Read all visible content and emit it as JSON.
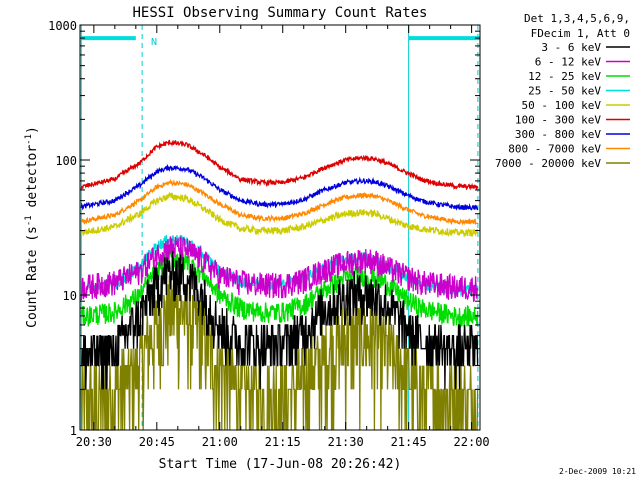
{
  "chart_data": {
    "type": "line",
    "title": "HESSI Observing Summary Count Rates",
    "xlabel": "Start Time (17-Jun-08 20:26:42)",
    "ylabel_parts": [
      "Count Rate (s",
      "-1",
      " detector",
      "-1",
      ")"
    ],
    "x_range_min": [
      26.7,
      122.0
    ],
    "y_scale": "log",
    "ylim": [
      1,
      1000
    ],
    "x_ticks": [
      {
        "min": 30,
        "label": "20:30"
      },
      {
        "min": 45,
        "label": "20:45"
      },
      {
        "min": 60,
        "label": "21:00"
      },
      {
        "min": 75,
        "label": "21:15"
      },
      {
        "min": 90,
        "label": "21:30"
      },
      {
        "min": 105,
        "label": "21:45"
      },
      {
        "min": 120,
        "label": "22:00"
      }
    ],
    "y_ticks": [
      {
        "value": 1,
        "label": "1"
      },
      {
        "value": 10,
        "label": "10"
      },
      {
        "value": 100,
        "label": "100"
      },
      {
        "value": 1000,
        "label": "1000"
      }
    ],
    "legend_header": [
      "Det 1,3,4,5,6,9,",
      "FDecim 1, Att 0"
    ],
    "legend_position": "right, outside plot",
    "annotation": "N",
    "footer_date": "2-Dec-2009 10:21",
    "cyan_bars": [
      [
        27,
        40
      ],
      [
        105,
        122
      ]
    ],
    "cyan_bar_value": 800,
    "solid_vlines_min": [
      27,
      105
    ],
    "dashed_vlines_min": [
      41.5,
      121.5
    ],
    "series": [
      {
        "name": "3 - 6 keV",
        "color": "#000000",
        "noise": 0.42,
        "x": [
          27,
          35,
          41,
          45,
          48,
          52,
          56,
          60,
          65,
          70,
          75,
          80,
          85,
          90,
          94,
          97,
          100,
          104,
          108,
          112,
          116,
          121.5
        ],
        "y": [
          3.5,
          4.0,
          7,
          12,
          15,
          14,
          10,
          6,
          4.5,
          4.2,
          4.3,
          5.5,
          8,
          10,
          10.5,
          10,
          8.5,
          6,
          4.6,
          4.2,
          4.0,
          4.0
        ]
      },
      {
        "name": "6 - 12 keV",
        "color": "#cc00cc",
        "noise": 0.22,
        "x": [
          27,
          35,
          41,
          45,
          48,
          52,
          56,
          60,
          65,
          70,
          75,
          80,
          85,
          90,
          94,
          97,
          100,
          104,
          108,
          112,
          116,
          121.5
        ],
        "y": [
          11.5,
          12.5,
          15,
          20,
          23,
          22,
          18,
          14,
          12.5,
          12,
          12,
          13,
          15.5,
          17.5,
          18.5,
          18,
          16,
          14,
          12.5,
          12,
          11.5,
          11.5
        ]
      },
      {
        "name": "12 - 25 keV",
        "color": "#00dd00",
        "noise": 0.18,
        "x": [
          27,
          35,
          41,
          45,
          48,
          52,
          56,
          60,
          65,
          70,
          75,
          80,
          85,
          90,
          94,
          97,
          100,
          104,
          108,
          112,
          116,
          121.5
        ],
        "y": [
          7,
          7.5,
          10,
          15,
          19,
          18,
          14,
          10,
          8,
          7.5,
          7.5,
          8.5,
          11,
          13.5,
          14,
          13.5,
          12,
          9.5,
          8,
          7.5,
          7,
          7
        ]
      },
      {
        "name": "25 - 50 keV",
        "color": "#00dddd",
        "noise": 0.1,
        "x": [
          27,
          35,
          41,
          45,
          48,
          52,
          56,
          60,
          65,
          70,
          75,
          80,
          85,
          90,
          94,
          97,
          100,
          104,
          108,
          112,
          116,
          121.5
        ],
        "y": [
          11,
          12,
          16,
          23,
          26,
          25,
          20,
          15,
          12.5,
          12,
          12,
          13.5,
          16,
          18.5,
          19,
          18.5,
          16.5,
          14,
          12,
          11.5,
          11,
          11
        ]
      },
      {
        "name": "50 - 100 keV",
        "color": "#cccc00",
        "noise": 0.06,
        "x": [
          27,
          35,
          41,
          45,
          48,
          52,
          56,
          60,
          65,
          70,
          75,
          80,
          85,
          90,
          94,
          97,
          100,
          104,
          108,
          112,
          116,
          121.5
        ],
        "y": [
          29,
          32,
          40,
          50,
          54,
          52,
          44,
          36,
          31,
          30,
          30,
          32,
          36,
          40,
          41,
          40,
          37,
          33,
          31,
          30,
          29,
          29
        ]
      },
      {
        "name": "100 - 300 keV",
        "color": "#dd0000",
        "noise": 0.04,
        "x": [
          27,
          35,
          41,
          45,
          48,
          52,
          56,
          60,
          65,
          70,
          75,
          80,
          85,
          90,
          94,
          97,
          100,
          104,
          108,
          112,
          116,
          121.5
        ],
        "y": [
          63,
          72,
          95,
          125,
          135,
          130,
          110,
          88,
          72,
          68,
          68,
          74,
          88,
          100,
          104,
          102,
          94,
          82,
          72,
          67,
          64,
          63
        ]
      },
      {
        "name": "300 - 800 keV",
        "color": "#0000dd",
        "noise": 0.04,
        "x": [
          27,
          35,
          41,
          45,
          48,
          52,
          56,
          60,
          65,
          70,
          75,
          80,
          85,
          90,
          94,
          97,
          100,
          104,
          108,
          112,
          116,
          121.5
        ],
        "y": [
          45,
          50,
          65,
          82,
          88,
          86,
          74,
          60,
          50,
          47,
          47,
          51,
          60,
          68,
          70,
          69,
          64,
          56,
          50,
          47,
          45,
          44
        ]
      },
      {
        "name": "800 - 7000 keV",
        "color": "#ff8800",
        "noise": 0.04,
        "x": [
          27,
          35,
          41,
          45,
          48,
          52,
          56,
          60,
          65,
          70,
          75,
          80,
          85,
          90,
          94,
          97,
          100,
          104,
          108,
          112,
          116,
          121.5
        ],
        "y": [
          35,
          39,
          50,
          63,
          68,
          66,
          57,
          47,
          39,
          37,
          37,
          40,
          47,
          53,
          55,
          54,
          50,
          44,
          39,
          37,
          35,
          35
        ]
      },
      {
        "name": "7000 - 20000 keV",
        "color": "#808000",
        "noise": 0.75,
        "x": [
          27,
          35,
          41,
          45,
          48,
          52,
          56,
          60,
          65,
          70,
          75,
          80,
          85,
          90,
          94,
          97,
          100,
          104,
          108,
          112,
          116,
          121.5
        ],
        "y": [
          1.6,
          1.8,
          3,
          6,
          8,
          7.5,
          5,
          3,
          2,
          1.8,
          1.8,
          2.2,
          3.5,
          5,
          5.2,
          5,
          4,
          2.8,
          2,
          1.8,
          1.7,
          1.6
        ]
      }
    ]
  }
}
